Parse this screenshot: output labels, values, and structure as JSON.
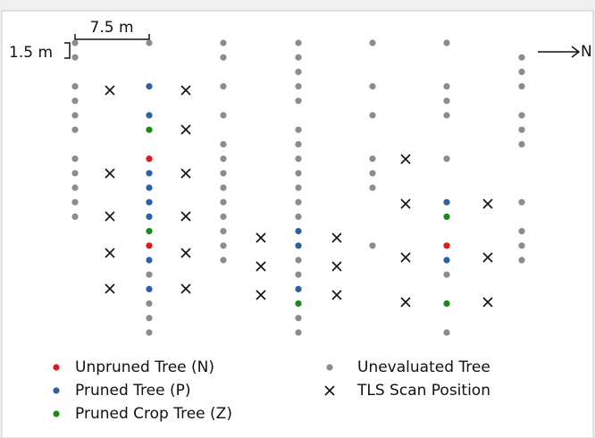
{
  "scale": {
    "horizontal": "7.5 m",
    "vertical": "1.5 m"
  },
  "north": "N",
  "legend": {
    "items": [
      {
        "label": "Unpruned Tree (N)"
      },
      {
        "label": "Pruned Tree (P)"
      },
      {
        "label": "Pruned Crop Tree (Z)"
      },
      {
        "label": "Unevaluated Tree"
      },
      {
        "label": "TLS Scan Position"
      }
    ]
  }
}
